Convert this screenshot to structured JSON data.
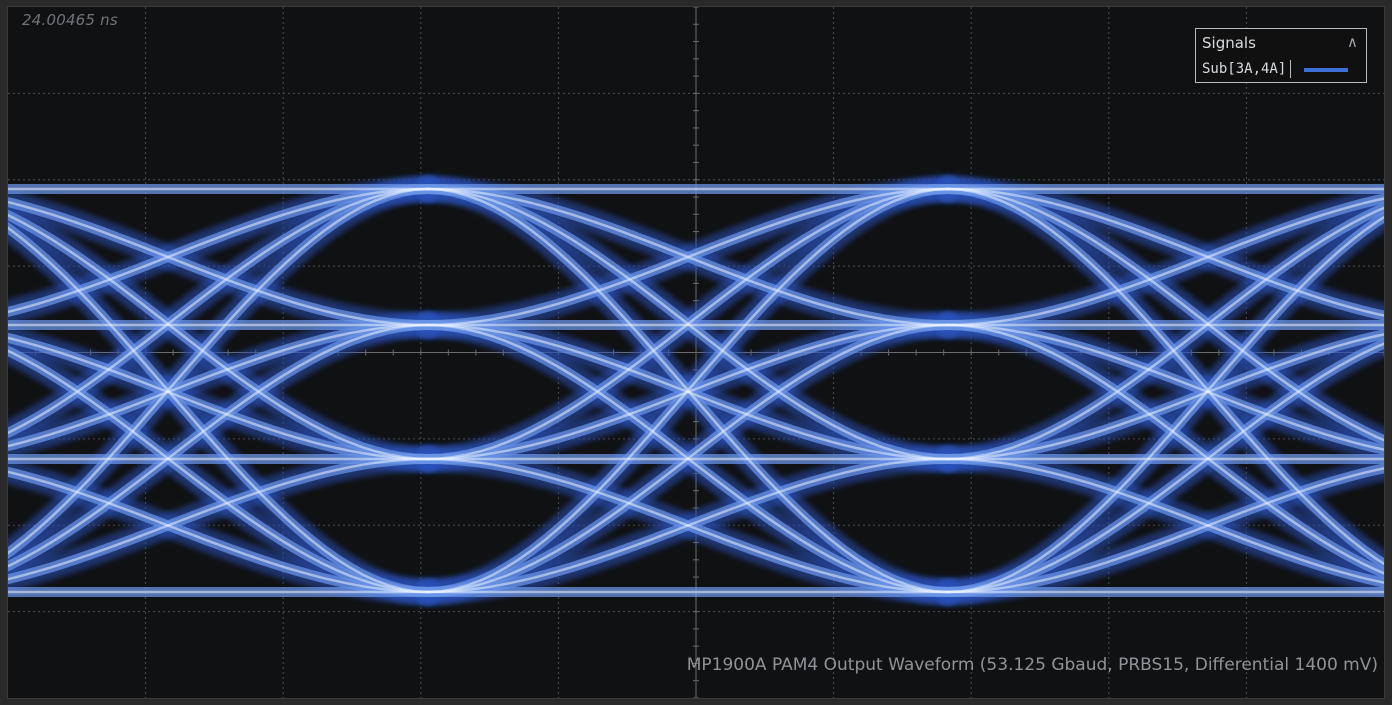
{
  "timestamp": "24.00465 ns",
  "legend": {
    "title": "Signals",
    "signal_label": "Sub[3A,4A]",
    "signal_color": "#3c6fd8"
  },
  "caption": "MP1900A PAM4 Output Waveform (53.125 Gbaud, PRBS15, Differential 1400 mV)",
  "colors": {
    "background": "#101112",
    "grid": "#4a4d50",
    "trace_core": "#eaf2ff",
    "trace_mid": "#6a93e6",
    "trace_edge": "#2a4fb8"
  },
  "icons": {
    "collapse": "double-chevron-up-icon"
  }
}
